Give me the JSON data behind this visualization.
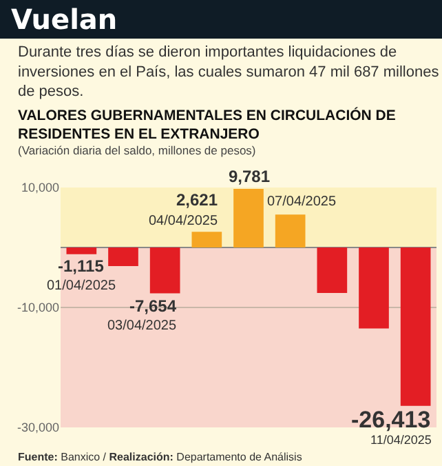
{
  "chart_data": {
    "type": "bar",
    "title": "Vuelan",
    "subtitle": "Durante tres días se dieron importantes liquidaciones de inversiones en el País, las cuales sumaron 47 mil 687 millones de pesos.",
    "annotations": [
      "VALORES GUBERNAMENTALES EN CIRCULACIÓN DE RESIDENTES EN EL EXTRANJERO",
      "(Variación diaria del saldo, millones de pesos)",
      "Fuente: Banxico / Realización: Departamento de Análisis",
      "01/04/2025",
      "03/04/2025",
      "04/04/2025",
      "07/04/2025",
      "11/04/2025"
    ],
    "categories": [
      null,
      null,
      null,
      null,
      null,
      null,
      null,
      null,
      null
    ],
    "values": [
      -1115,
      -3100,
      -7654,
      2621,
      9781,
      5500,
      -7600,
      -13500,
      -26413
    ],
    "colors": [
      "#e31e24",
      "#e31e24",
      "#e31e24",
      "#f5a623",
      "#f5a623",
      "#f5a623",
      "#e31e24",
      "#e31e24",
      "#e31e24"
    ],
    "value_labels": [
      "-1,115",
      null,
      "-7,654",
      "2,621",
      "9,781",
      null,
      null,
      null,
      "-26,413"
    ],
    "ylim": [
      -30000,
      10000
    ],
    "yticks": [
      {
        "value": 10000,
        "label": "10,000"
      },
      {
        "value": -10000,
        "label": "-10,000"
      },
      {
        "value": -30000,
        "label": "-30,000"
      }
    ],
    "bands": [
      {
        "axis": "y",
        "from": 0,
        "to": 10000,
        "color": "#fcf1bf"
      },
      {
        "axis": "y",
        "from": -30000,
        "to": 0,
        "color": "#f9d6cc"
      }
    ],
    "grid": "y",
    "tick_labels": "y"
  }
}
